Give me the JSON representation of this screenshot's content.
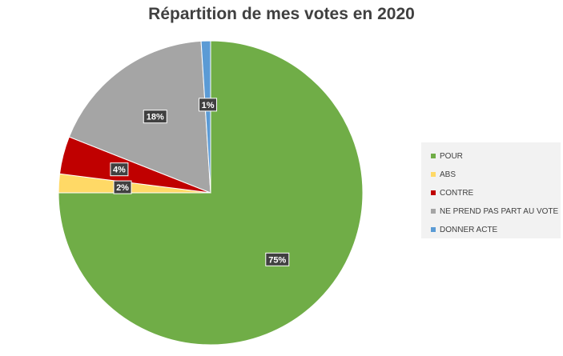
{
  "chart_data": {
    "type": "pie",
    "title": "Répartition de mes votes en 2020",
    "categories": [
      "POUR",
      "ABS",
      "CONTRE",
      "NE PREND PAS PART AU VOTE",
      "DONNER ACTE"
    ],
    "values": [
      75,
      2,
      4,
      18,
      1
    ],
    "value_labels": [
      "75%",
      "2%",
      "4%",
      "18%",
      "1%"
    ],
    "colors": [
      "#70ad47",
      "#ffd966",
      "#c00000",
      "#a5a5a5",
      "#5b9bd5"
    ],
    "legend": "right"
  }
}
